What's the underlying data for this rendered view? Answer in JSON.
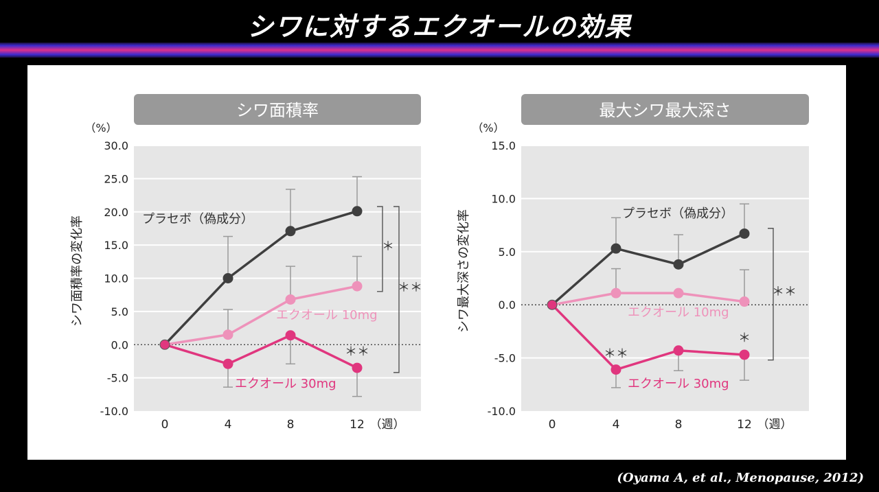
{
  "title": "シワに対するエクオールの効果",
  "citation": "(Oyama A, et al., Menopause, 2012)",
  "colors": {
    "placebo": "#3f3f3f",
    "equol10": "#ee92ba",
    "equol30": "#e0367e",
    "plot_bg": "#e6e6e6",
    "header_bg": "#999999",
    "errorbar": "#9a9a9a"
  },
  "chart_data": [
    {
      "type": "line",
      "title": "シワ面積率",
      "ylabel": "シワ面積率の変化率",
      "unit": "（%）",
      "x_unit": "（週）",
      "x": [
        0,
        4,
        8,
        12
      ],
      "x_tick_labels": [
        "0",
        "4",
        "8",
        "12"
      ],
      "ylim": [
        -10,
        30
      ],
      "y_ticks": [
        "30.0",
        "25.0",
        "20.0",
        "15.0",
        "10.0",
        "5.0",
        "0.0",
        "-5.0",
        "-10.0"
      ],
      "grid": true,
      "series": [
        {
          "name": "プラセボ（偽成分）",
          "key": "placebo",
          "values": [
            0,
            10.0,
            17.1,
            20.1
          ],
          "err_up": [
            0,
            6.3,
            6.3,
            5.2
          ],
          "err_down": [
            0,
            0,
            0,
            0
          ]
        },
        {
          "name": "エクオール 10mg",
          "key": "equol10",
          "values": [
            0,
            1.5,
            6.8,
            8.8
          ],
          "err_up": [
            0,
            3.8,
            5.0,
            4.5
          ],
          "err_down": [
            0,
            0,
            0,
            0
          ]
        },
        {
          "name": "エクオール 30mg",
          "key": "equol30",
          "values": [
            0,
            -2.9,
            1.4,
            -3.5
          ],
          "err_up": [
            0,
            0,
            0,
            0
          ],
          "err_down": [
            0,
            3.5,
            4.3,
            4.3
          ]
        }
      ],
      "annotations": [
        {
          "text": "＊＊",
          "x": 12,
          "y": -1.7,
          "key": "equol30"
        },
        {
          "text": "＊",
          "y_top": 20.8,
          "y_bottom": 8.0,
          "label": "＊"
        },
        {
          "text": "＊＊",
          "y_top": 20.8,
          "y_bottom": -4.2,
          "label": "＊＊"
        }
      ]
    },
    {
      "type": "line",
      "title": "最大シワ最大深さ",
      "ylabel": "シワ最大深さの変化率",
      "unit": "（%）",
      "x_unit": "（週）",
      "x": [
        0,
        4,
        8,
        12
      ],
      "x_tick_labels": [
        "0",
        "4",
        "8",
        "12"
      ],
      "ylim": [
        -10,
        15
      ],
      "y_ticks": [
        "15.0",
        "10.0",
        "5.0",
        "0.0",
        "-5.0",
        "-10.0"
      ],
      "grid": true,
      "series": [
        {
          "name": "プラセボ（偽成分）",
          "key": "placebo",
          "values": [
            0,
            5.3,
            3.8,
            6.7
          ],
          "err_up": [
            0,
            2.9,
            2.8,
            2.8
          ],
          "err_down": [
            0,
            0,
            0,
            0
          ]
        },
        {
          "name": "エクオール 10mg",
          "key": "equol10",
          "values": [
            0,
            1.1,
            1.1,
            0.3
          ],
          "err_up": [
            0,
            2.3,
            0,
            3.0
          ],
          "err_down": [
            0,
            0,
            0,
            0
          ]
        },
        {
          "name": "エクオール 30mg",
          "key": "equol30",
          "values": [
            0,
            -6.1,
            -4.3,
            -4.7
          ],
          "err_up": [
            0,
            0,
            0,
            0
          ],
          "err_down": [
            0,
            1.7,
            1.9,
            2.4
          ]
        }
      ],
      "annotations": [
        {
          "text": "＊＊",
          "x": 4,
          "y": -5.0,
          "key": "equol30"
        },
        {
          "text": "＊",
          "x": 12,
          "y": -3.5,
          "key": "equol30"
        },
        {
          "text": "＊＊",
          "y_top": 7.2,
          "y_bottom": -5.2,
          "label": "＊＊"
        }
      ]
    }
  ]
}
